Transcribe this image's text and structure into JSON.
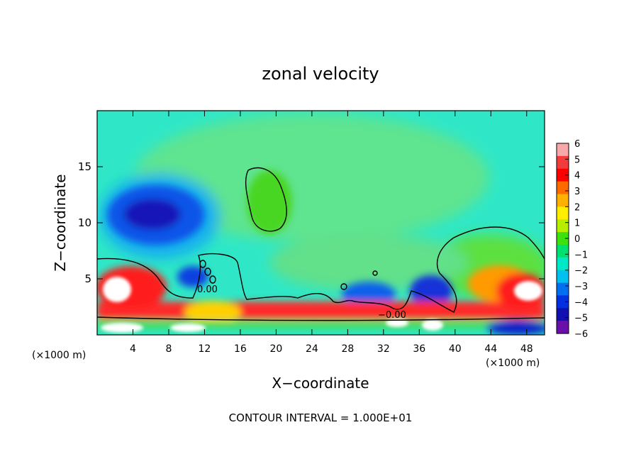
{
  "chart_data": {
    "type": "heatmap",
    "title": "zonal velocity",
    "xlabel": "X−coordinate",
    "ylabel": "Z−coordinate",
    "x_unit": "(×1000 m)",
    "z_unit": "(×1000 m)",
    "xlim": [
      0,
      50
    ],
    "ylim": [
      0,
      20
    ],
    "x_ticks": [
      4,
      8,
      12,
      16,
      20,
      24,
      28,
      32,
      36,
      40,
      44,
      48
    ],
    "x_tick_labels": [
      "4",
      "8",
      "12",
      "16",
      "20",
      "24",
      "28",
      "32",
      "36",
      "40",
      "44",
      "48"
    ],
    "y_ticks": [
      5,
      10,
      15
    ],
    "y_tick_labels": [
      "5",
      "10",
      "15"
    ],
    "colorbar": {
      "min": -6,
      "max": 6,
      "tick_labels": [
        "6",
        "5",
        "4",
        "3",
        "2",
        "1",
        "0",
        "−1",
        "−2",
        "−3",
        "−4",
        "−5",
        "−6"
      ],
      "colors": [
        "#f7a8a8",
        "#f23b3b",
        "#ff0000",
        "#ff6a00",
        "#ffb000",
        "#ffee00",
        "#b7ee00",
        "#3ee010",
        "#00e070",
        "#00e8c8",
        "#00c0f0",
        "#0070f0",
        "#0030e0",
        "#1010b0",
        "#6a10a8"
      ]
    },
    "contour_labels": [
      "0.00",
      "−0.00"
    ],
    "footer": "CONTOUR INTERVAL = 1.000E+01"
  }
}
